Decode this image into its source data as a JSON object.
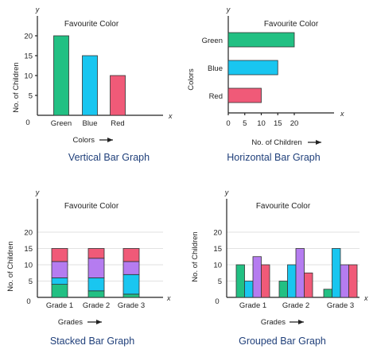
{
  "colors": {
    "green": "#22c083",
    "blue": "#19c6f0",
    "red": "#f05a78",
    "purple": "#b57cf0"
  },
  "chart_data": [
    {
      "type": "bar",
      "orientation": "vertical",
      "title": "Favourite Color",
      "caption": "Vertical Bar Graph",
      "xlabel": "Colors",
      "ylabel": "No. of Children",
      "x_axis_letter": "x",
      "y_axis_letter": "y",
      "origin_label": "0",
      "categories": [
        "Green",
        "Blue",
        "Red"
      ],
      "values": [
        20,
        15,
        10
      ],
      "bar_colors": [
        "green",
        "blue",
        "red"
      ],
      "yticks": [
        "5",
        "10",
        "15",
        "20"
      ],
      "ylim": [
        0,
        25
      ]
    },
    {
      "type": "bar",
      "orientation": "horizontal",
      "title": "Favourite Color",
      "caption": "Horizontal Bar Graph",
      "xlabel": "No. of Children",
      "ylabel": "Colors",
      "x_axis_letter": "x",
      "y_axis_letter": "y",
      "categories": [
        "Green",
        "Blue",
        "Red"
      ],
      "values": [
        20,
        15,
        10
      ],
      "bar_colors": [
        "green",
        "blue",
        "red"
      ],
      "xticks": [
        "0",
        "5",
        "10",
        "15",
        "20"
      ],
      "xlim": [
        0,
        25
      ]
    },
    {
      "type": "bar",
      "stacked": true,
      "title": "Favourite Color",
      "caption": "Stacked Bar Graph",
      "xlabel": "Grades",
      "ylabel": "No. of Children",
      "x_axis_letter": "x",
      "y_axis_letter": "y",
      "origin_label": "0",
      "categories": [
        "Grade 1",
        "Grade 2",
        "Grade 3"
      ],
      "series": [
        {
          "values": [
            4,
            2,
            1
          ],
          "color": "green"
        },
        {
          "values": [
            2,
            4,
            6
          ],
          "color": "blue"
        },
        {
          "values": [
            5,
            6,
            4
          ],
          "color": "purple"
        },
        {
          "values": [
            4,
            3,
            4
          ],
          "color": "red"
        }
      ],
      "yticks": [
        "5",
        "10",
        "15",
        "20"
      ],
      "ylim": [
        0,
        25
      ],
      "grid": true
    },
    {
      "type": "bar",
      "grouped": true,
      "title": "Favourite Color",
      "caption": "Grouped Bar Graph",
      "xlabel": "Grades",
      "ylabel": "No. of Children",
      "x_axis_letter": "x",
      "y_axis_letter": "y",
      "origin_label": "0",
      "categories": [
        "Grade 1",
        "Grade 2",
        "Grade 3"
      ],
      "series": [
        {
          "values": [
            10,
            5,
            2.5
          ],
          "color": "green"
        },
        {
          "values": [
            5,
            10,
            15
          ],
          "color": "blue"
        },
        {
          "values": [
            12.5,
            15,
            10
          ],
          "color": "purple"
        },
        {
          "values": [
            10,
            7.5,
            10
          ],
          "color": "red"
        }
      ],
      "yticks": [
        "5",
        "10",
        "15",
        "20"
      ],
      "ylim": [
        0,
        25
      ],
      "grid": true
    }
  ]
}
